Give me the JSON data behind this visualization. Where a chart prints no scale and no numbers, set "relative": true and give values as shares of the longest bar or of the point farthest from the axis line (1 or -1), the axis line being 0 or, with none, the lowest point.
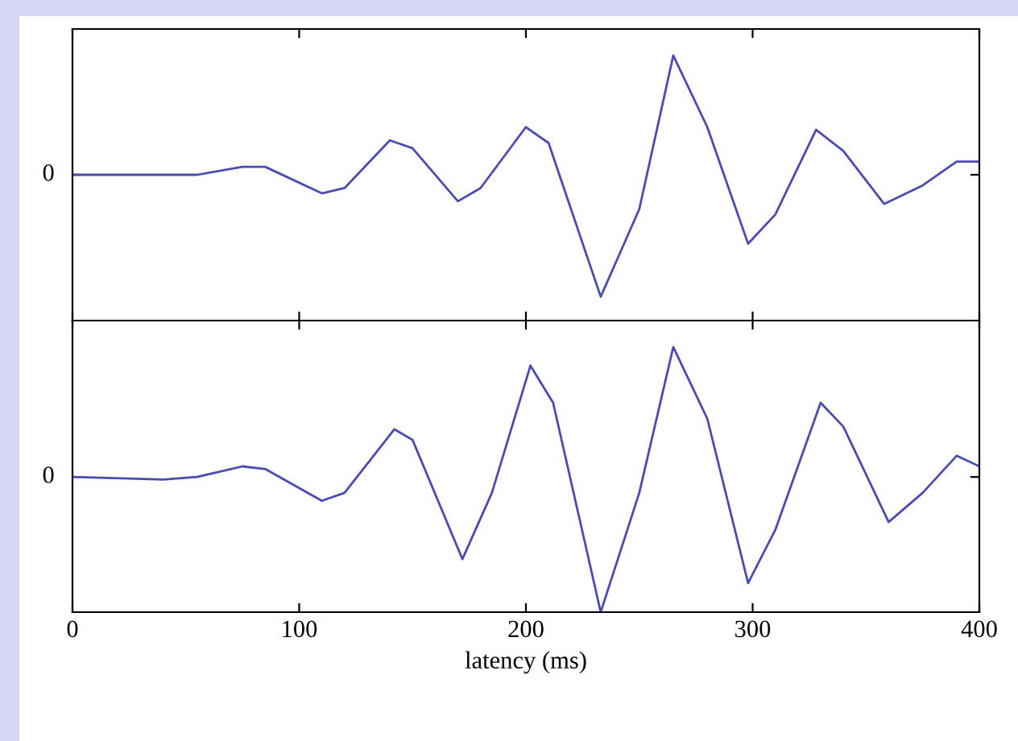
{
  "chart_data": [
    {
      "type": "line",
      "relative": true,
      "x": [
        0,
        55,
        75,
        85,
        110,
        120,
        140,
        150,
        170,
        180,
        200,
        210,
        233,
        250,
        265,
        280,
        298,
        310,
        328,
        340,
        358,
        375,
        390,
        400
      ],
      "xlim": [
        0,
        400
      ],
      "xticks": [
        0,
        100,
        200,
        300,
        400
      ],
      "annotations": [
        {
          "text": "0",
          "x": 0,
          "y": 0.55
        }
      ],
      "tick_labels": false,
      "grid": false,
      "series": [
        {
          "color": "#4b4bb0",
          "values": [
            0.55,
            0.55,
            0.58,
            0.58,
            0.48,
            0.5,
            0.68,
            0.65,
            0.45,
            0.5,
            0.73,
            0.67,
            0.09,
            0.42,
            1,
            0.73,
            0.29,
            0.4,
            0.72,
            0.64,
            0.44,
            0.51,
            0.6,
            0.6
          ]
        }
      ]
    },
    {
      "type": "line",
      "relative": true,
      "x": [
        0,
        40,
        55,
        75,
        85,
        110,
        120,
        142,
        150,
        172,
        185,
        202,
        212,
        233,
        250,
        265,
        280,
        298,
        310,
        330,
        340,
        360,
        375,
        390,
        400
      ],
      "xlim": [
        0,
        400
      ],
      "xticks": [
        0,
        100,
        200,
        300,
        400
      ],
      "annotations": [
        {
          "text": "0",
          "x": 0,
          "y": 0.51
        }
      ],
      "tick_labels": "x",
      "xlabel": "latency (ms)",
      "grid": false,
      "series": [
        {
          "color": "#4b4bb0",
          "values": [
            0.51,
            0.5,
            0.51,
            0.55,
            0.54,
            0.42,
            0.45,
            0.69,
            0.65,
            0.2,
            0.45,
            0.93,
            0.79,
            0,
            0.45,
            1,
            0.73,
            0.11,
            0.31,
            0.79,
            0.7,
            0.34,
            0.45,
            0.59,
            0.55
          ]
        }
      ]
    }
  ]
}
